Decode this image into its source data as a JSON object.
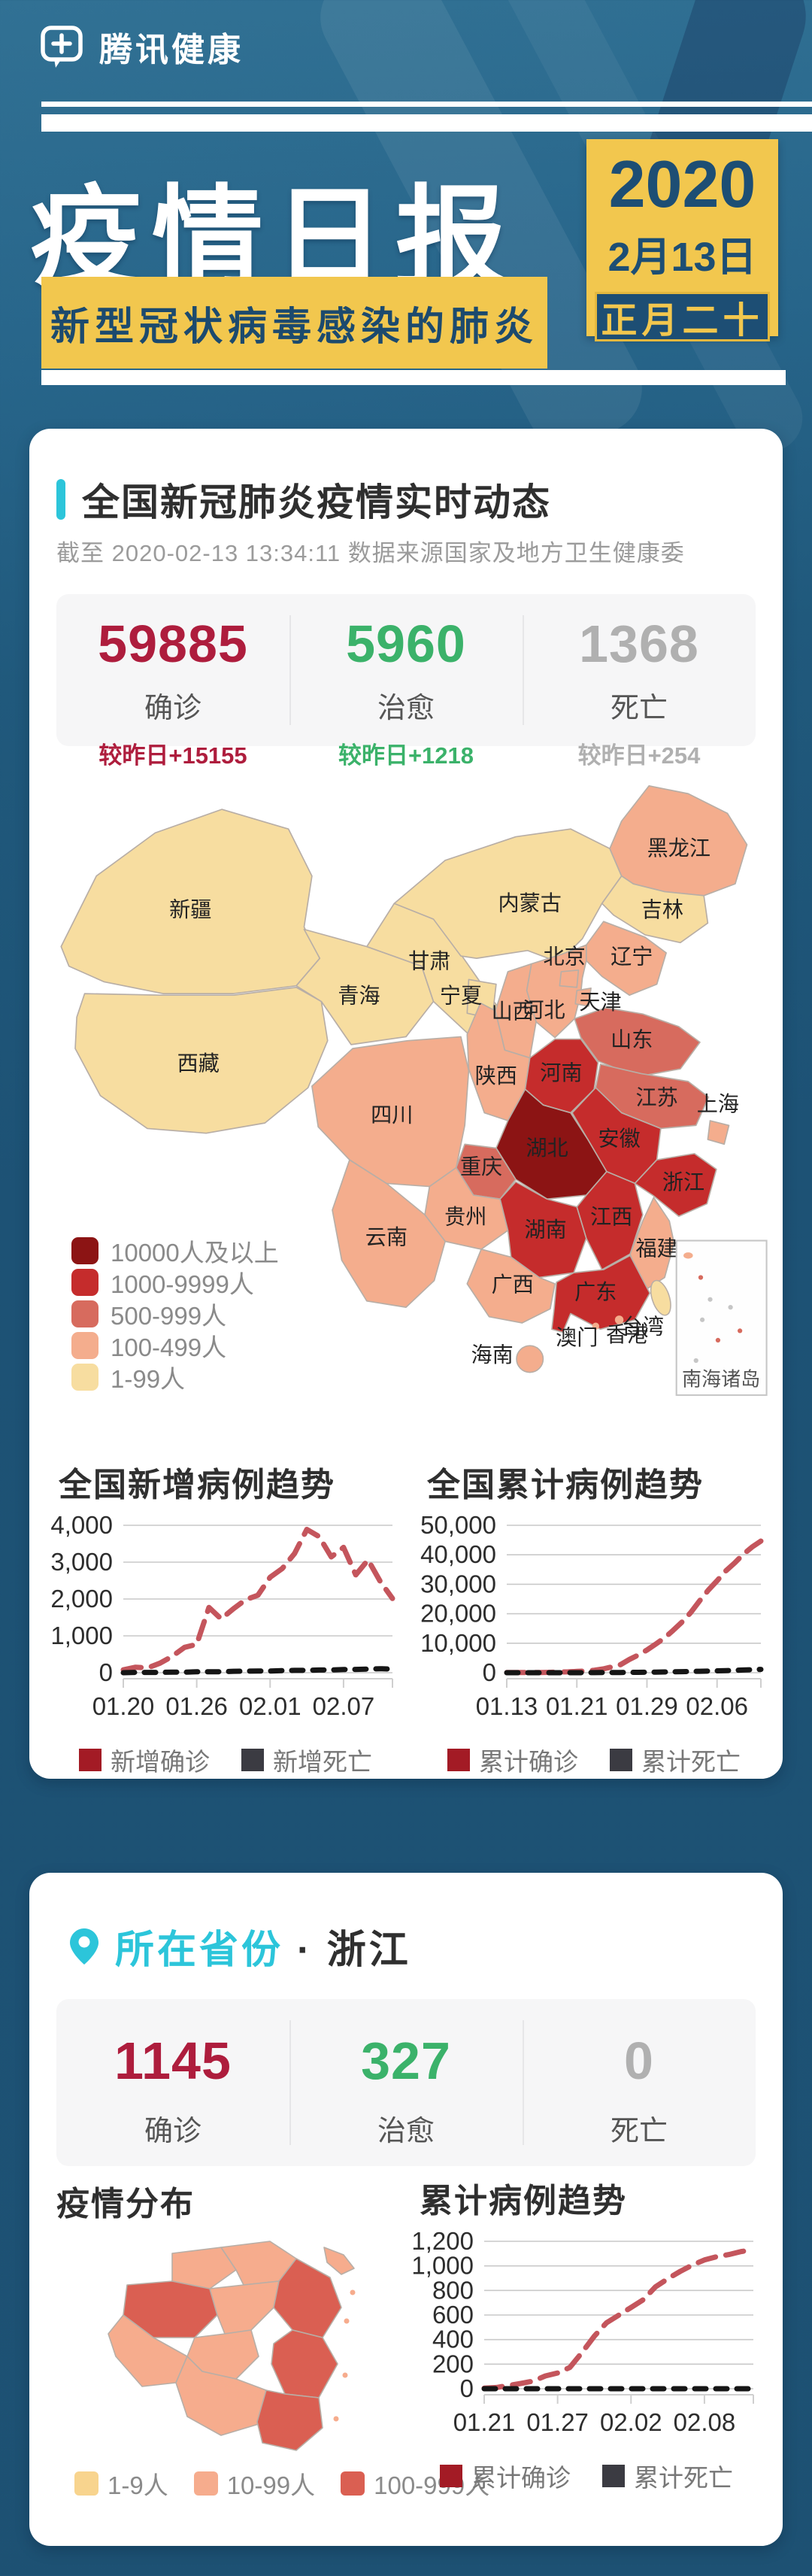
{
  "header": {
    "brand": "腾讯健康",
    "title": "疫情日报",
    "subtitle": "新型冠状病毒感染的肺炎",
    "date": {
      "year": "2020",
      "md": "2月13日",
      "lunar": "正月二十"
    }
  },
  "national": {
    "title": "全国新冠肺炎疫情实时动态",
    "asof": "截至 2020-02-13 13:34:11 数据来源国家及地方卫生健康委",
    "stats": [
      {
        "value": "59885",
        "label": "确诊",
        "delta": "较昨日+15155",
        "color": "#ae1d3d"
      },
      {
        "value": "5960",
        "label": "治愈",
        "delta": "较昨日+1218",
        "color": "#3bb26a"
      },
      {
        "value": "1368",
        "label": "死亡",
        "delta": "较昨日+254",
        "color": "#b0b0b0"
      }
    ],
    "map": {
      "legend": [
        {
          "key": "lv5",
          "label": "10000人及以上",
          "color": "#8c1414"
        },
        {
          "key": "lv4",
          "label": "1000-9999人",
          "color": "#c52c2c"
        },
        {
          "key": "lv3",
          "label": "500-999人",
          "color": "#d76b5e"
        },
        {
          "key": "lv2",
          "label": "100-499人",
          "color": "#f4ad8d"
        },
        {
          "key": "lv1",
          "label": "1-99人",
          "color": "#f7dda0"
        }
      ],
      "inset_label": "南海诸岛",
      "provinces": {
        "新疆": "lv1",
        "西藏": "lv1",
        "青海": "lv1",
        "甘肃": "lv1",
        "内蒙古": "lv1",
        "宁夏": "lv1",
        "吉林": "lv1",
        "台湾": "lv1",
        "黑龙江": "lv2",
        "辽宁": "lv2",
        "北京": "lv2",
        "天津": "lv2",
        "河北": "lv2",
        "山西": "lv2",
        "陕西": "lv2",
        "四川": "lv2",
        "贵州": "lv2",
        "云南": "lv2",
        "广西": "lv2",
        "福建": "lv2",
        "海南": "lv2",
        "上海": "lv2",
        "香港": "lv2",
        "澳门": "lv2",
        "山东": "lv3",
        "江苏": "lv3",
        "重庆": "lv3",
        "河南": "lv4",
        "安徽": "lv4",
        "浙江": "lv4",
        "江西": "lv4",
        "湖南": "lv4",
        "广东": "lv4",
        "湖北": "lv5"
      }
    }
  },
  "chart_data": [
    {
      "type": "line",
      "title": "全国新增病例趋势",
      "x": [
        "01.20",
        "01.21",
        "01.22",
        "01.23",
        "01.24",
        "01.25",
        "01.26",
        "01.27",
        "01.28",
        "01.29",
        "01.30",
        "01.31",
        "02.01",
        "02.02",
        "02.03",
        "02.04",
        "02.05",
        "02.06",
        "02.07",
        "02.08",
        "02.09",
        "02.10",
        "02.11"
      ],
      "x_ticks": [
        "01.20",
        "01.26",
        "02.01",
        "02.07"
      ],
      "ylim": [
        0,
        4000
      ],
      "yticks": [
        0,
        1000,
        2000,
        3000,
        4000
      ],
      "grid": true,
      "legend_position": "bottom",
      "series": [
        {
          "name": "新增确诊",
          "color": "#c4555c",
          "legend_color": "#a31b25",
          "values": [
            77,
            149,
            131,
            259,
            444,
            688,
            769,
            1771,
            1459,
            1737,
            1982,
            2102,
            2590,
            2829,
            3235,
            3887,
            3694,
            3143,
            3399,
            2656,
            3062,
            2478,
            2015
          ]
        },
        {
          "name": "新增死亡",
          "color": "#151515",
          "legend_color": "#3b3b42",
          "values": [
            1,
            8,
            8,
            8,
            16,
            15,
            24,
            26,
            26,
            38,
            43,
            46,
            45,
            57,
            64,
            65,
            73,
            73,
            86,
            89,
            97,
            108,
            97
          ]
        }
      ]
    },
    {
      "type": "line",
      "title": "全国累计病例趋势",
      "x": [
        "01.13",
        "01.14",
        "01.15",
        "01.16",
        "01.17",
        "01.18",
        "01.19",
        "01.20",
        "01.21",
        "01.22",
        "01.23",
        "01.24",
        "01.25",
        "01.26",
        "01.27",
        "01.28",
        "01.29",
        "01.30",
        "01.31",
        "02.01",
        "02.02",
        "02.03",
        "02.04",
        "02.05",
        "02.06",
        "02.07",
        "02.08",
        "02.09",
        "02.10",
        "02.11"
      ],
      "x_ticks": [
        "01.13",
        "01.21",
        "01.29",
        "02.06"
      ],
      "ylim": [
        0,
        50000
      ],
      "yticks": [
        0,
        10000,
        20000,
        30000,
        40000,
        50000
      ],
      "grid": true,
      "legend_position": "bottom",
      "series": [
        {
          "name": "累计确诊",
          "color": "#c4555c",
          "legend_color": "#a31b25",
          "values": [
            41,
            41,
            41,
            45,
            62,
            121,
            198,
            291,
            440,
            571,
            830,
            1287,
            1975,
            2744,
            4515,
            5974,
            7711,
            9692,
            11791,
            14380,
            17205,
            20438,
            24324,
            28018,
            31161,
            34546,
            37198,
            40171,
            42638,
            44653
          ]
        },
        {
          "name": "累计死亡",
          "color": "#151515",
          "legend_color": "#3b3b42",
          "values": [
            1,
            1,
            2,
            2,
            2,
            3,
            4,
            6,
            9,
            17,
            25,
            41,
            56,
            80,
            106,
            132,
            170,
            213,
            259,
            304,
            361,
            425,
            490,
            563,
            636,
            722,
            811,
            908,
            1016,
            1113
          ]
        }
      ]
    },
    {
      "type": "line",
      "title": "累计病例趋势",
      "x": [
        "01.21",
        "01.22",
        "01.23",
        "01.24",
        "01.25",
        "01.26",
        "01.27",
        "01.28",
        "01.29",
        "01.30",
        "01.31",
        "02.01",
        "02.02",
        "02.03",
        "02.04",
        "02.05",
        "02.06",
        "02.07",
        "02.08",
        "02.09",
        "02.10",
        "02.11",
        "02.12"
      ],
      "x_ticks": [
        "01.21",
        "01.27",
        "02.02",
        "02.08"
      ],
      "ylim": [
        0,
        1200
      ],
      "yticks": [
        0,
        200,
        400,
        600,
        800,
        1000,
        1200
      ],
      "grid": true,
      "legend_position": "bottom",
      "series": [
        {
          "name": "累计确诊",
          "color": "#c4555c",
          "legend_color": "#a31b25",
          "values": [
            5,
            10,
            27,
            43,
            62,
            104,
            128,
            173,
            296,
            428,
            537,
            599,
            661,
            724,
            829,
            895,
            954,
            1006,
            1048,
            1075,
            1092,
            1117,
            1131
          ]
        },
        {
          "name": "累计死亡",
          "color": "#151515",
          "legend_color": "#3b3b42",
          "values": [
            0,
            0,
            0,
            0,
            0,
            0,
            0,
            0,
            0,
            0,
            0,
            0,
            0,
            0,
            0,
            0,
            0,
            0,
            0,
            0,
            0,
            0,
            0
          ]
        }
      ]
    }
  ],
  "province": {
    "location_label": "所在省份",
    "name": "· 浙江",
    "stats": [
      {
        "value": "1145",
        "label": "确诊",
        "color": "#ae1d3d"
      },
      {
        "value": "327",
        "label": "治愈",
        "color": "#3bb26a"
      },
      {
        "value": "0",
        "label": "死亡",
        "color": "#b0b0b0"
      }
    ],
    "dist_title": "疫情分布",
    "map_legend": [
      {
        "label": "1-9人",
        "color": "#f8d48e"
      },
      {
        "label": "10-99人",
        "color": "#f6ac8d"
      },
      {
        "label": "100-999人",
        "color": "#da5f52"
      }
    ],
    "region_levels": [
      1,
      1,
      2,
      1,
      2,
      1,
      1,
      1,
      2,
      1,
      2
    ]
  }
}
